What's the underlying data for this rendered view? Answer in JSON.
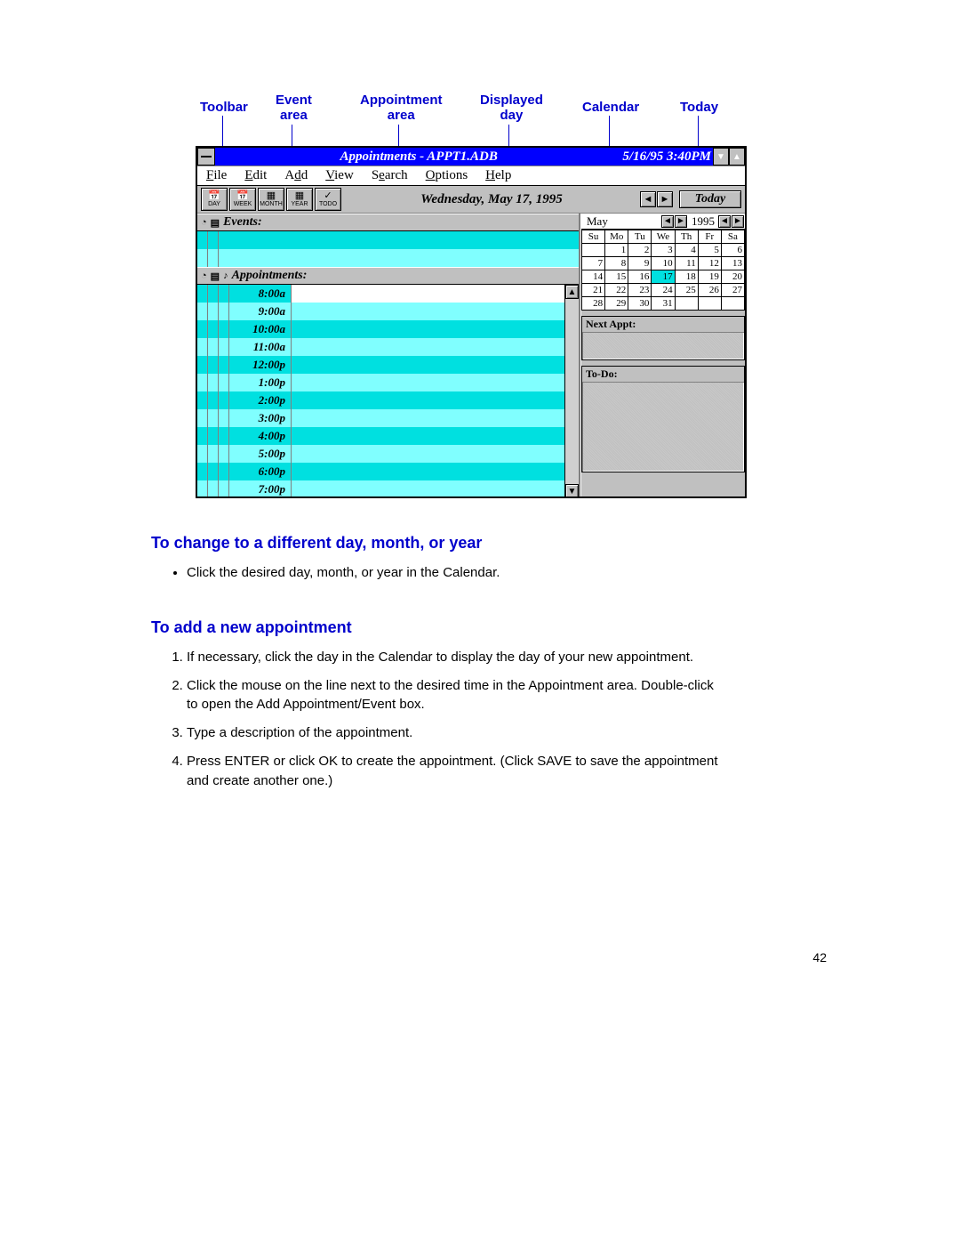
{
  "callouts": {
    "toolbar": "Toolbar",
    "event_area": "Event\narea",
    "appointment_area": "Appointment\narea",
    "displayed_day": "Displayed\nday",
    "calendar": "Calendar",
    "today": "Today"
  },
  "window": {
    "title_center": "Appointments - APPT1.ADB",
    "title_right": "5/16/95  3:40PM",
    "menu": [
      "File",
      "Edit",
      "Add",
      "View",
      "Search",
      "Options",
      "Help"
    ],
    "menu_underline_idx": [
      0,
      0,
      1,
      0,
      1,
      0,
      0
    ],
    "toolbar_buttons": [
      "DAY",
      "WEEK",
      "MONTH",
      "YEAR",
      "TODO"
    ],
    "displayed_day": "Wednesday, May 17, 1995",
    "today_label": "Today",
    "events_label": "Events:",
    "appointments_label": "Appointments:",
    "time_slots": [
      "8:00a",
      "9:00a",
      "10:00a",
      "11:00a",
      "12:00p",
      "1:00p",
      "2:00p",
      "3:00p",
      "4:00p",
      "5:00p",
      "6:00p",
      "7:00p"
    ]
  },
  "calendar": {
    "month": "May",
    "year": "1995",
    "dow": [
      "Su",
      "Mo",
      "Tu",
      "We",
      "Th",
      "Fr",
      "Sa"
    ],
    "weeks": [
      [
        "",
        "1",
        "2",
        "3",
        "4",
        "5",
        "6"
      ],
      [
        "7",
        "8",
        "9",
        "10",
        "11",
        "12",
        "13"
      ],
      [
        "14",
        "15",
        "16",
        "17",
        "18",
        "19",
        "20"
      ],
      [
        "21",
        "22",
        "23",
        "24",
        "25",
        "26",
        "27"
      ],
      [
        "28",
        "29",
        "30",
        "31",
        "",
        "",
        ""
      ]
    ],
    "selected_day": "17",
    "next_appt_label": "Next Appt:",
    "todo_label": "To-Do:"
  },
  "instructions": {
    "h1": "To change to a different day, month, or year",
    "bullet1": "Click the desired day, month, or year in the Calendar.",
    "h2": "To add a new appointment",
    "step1": "If necessary, click the day in the Calendar to display the day of your new appointment.",
    "step2": "Click the mouse on the line next to the desired time in the Appointment area. Double-click to open the Add Appointment/Event box.",
    "step3": "Type a description of the appointment.",
    "step4": "Press ENTER or click OK to create the appointment. (Click SAVE to save the appointment and create another one.)"
  },
  "page_number": "42",
  "colors": {
    "titlebar": "#0000ff",
    "cyan_dark": "#00e0e0",
    "cyan_light": "#80ffff",
    "link_blue": "#0000cc",
    "win_gray": "#c0c0c0"
  }
}
